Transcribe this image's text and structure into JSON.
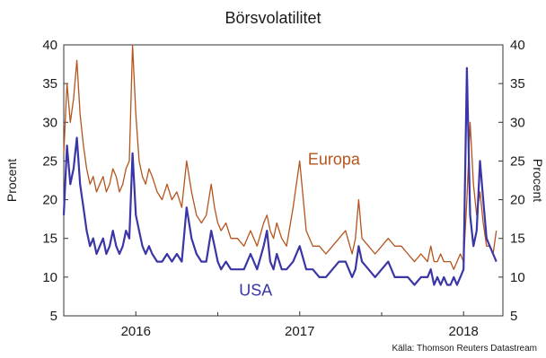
{
  "chart_data": {
    "type": "line",
    "title": "Börsvolatilitet",
    "ylabel_left": "Procent",
    "ylabel_right": "Procent",
    "source": "Källa: Thomson Reuters Datastream",
    "ylim": [
      5,
      40
    ],
    "yticks": [
      "5",
      "10",
      "15",
      "20",
      "25",
      "30",
      "35",
      "40"
    ],
    "xlim": [
      2015.56,
      2018.24
    ],
    "xticks": [
      {
        "label": "2016",
        "x": 2016.0
      },
      {
        "label": "2017",
        "x": 2017.0
      },
      {
        "label": "2018",
        "x": 2018.0
      }
    ],
    "grid": false,
    "series": [
      {
        "name": "Europa",
        "color": "#b5541c",
        "label_x": 2017.05,
        "label_y": 24.5,
        "x": [
          2015.56,
          2015.58,
          2015.6,
          2015.62,
          2015.64,
          2015.66,
          2015.68,
          2015.7,
          2015.72,
          2015.74,
          2015.76,
          2015.78,
          2015.8,
          2015.82,
          2015.84,
          2015.86,
          2015.88,
          2015.9,
          2015.92,
          2015.94,
          2015.96,
          2015.98,
          2016.0,
          2016.02,
          2016.04,
          2016.06,
          2016.08,
          2016.1,
          2016.13,
          2016.16,
          2016.19,
          2016.22,
          2016.25,
          2016.28,
          2016.31,
          2016.34,
          2016.37,
          2016.4,
          2016.43,
          2016.46,
          2016.48,
          2016.5,
          2016.52,
          2016.55,
          2016.58,
          2016.62,
          2016.66,
          2016.7,
          2016.74,
          2016.78,
          2016.8,
          2016.82,
          2016.84,
          2016.86,
          2016.89,
          2016.92,
          2016.96,
          2017.0,
          2017.04,
          2017.08,
          2017.12,
          2017.16,
          2017.2,
          2017.24,
          2017.28,
          2017.32,
          2017.34,
          2017.36,
          2017.38,
          2017.42,
          2017.46,
          2017.5,
          2017.54,
          2017.58,
          2017.62,
          2017.66,
          2017.7,
          2017.74,
          2017.78,
          2017.8,
          2017.82,
          2017.84,
          2017.86,
          2017.88,
          2017.9,
          2017.92,
          2017.94,
          2017.96,
          2017.98,
          2018.0,
          2018.02,
          2018.04,
          2018.06,
          2018.08,
          2018.1,
          2018.12,
          2018.14,
          2018.16,
          2018.18,
          2018.2
        ],
        "values": [
          26,
          35,
          30,
          33,
          38,
          31,
          27,
          24,
          22,
          23,
          21,
          22,
          23,
          21,
          22,
          24,
          23,
          21,
          22,
          24,
          25,
          40,
          31,
          25,
          23,
          22,
          24,
          23,
          21,
          20,
          22,
          20,
          21,
          19,
          25,
          21,
          18,
          17,
          18,
          22,
          19,
          17,
          16,
          17,
          15,
          15,
          14,
          16,
          14,
          17,
          18,
          16,
          15,
          17,
          15,
          14,
          19,
          25,
          16,
          14,
          14,
          13,
          14,
          15,
          16,
          13,
          15,
          20,
          15,
          14,
          13,
          14,
          15,
          14,
          14,
          13,
          12,
          13,
          12,
          14,
          12,
          12,
          13,
          12,
          12,
          12,
          11,
          12,
          13,
          12,
          20,
          30,
          22,
          18,
          21,
          17,
          14,
          14,
          13,
          16
        ]
      },
      {
        "name": "USA",
        "color": "#3a36a6",
        "label_x": 2016.63,
        "label_y": 7.6,
        "x": [
          2015.56,
          2015.58,
          2015.6,
          2015.62,
          2015.64,
          2015.66,
          2015.68,
          2015.7,
          2015.72,
          2015.74,
          2015.76,
          2015.78,
          2015.8,
          2015.82,
          2015.84,
          2015.86,
          2015.88,
          2015.9,
          2015.92,
          2015.94,
          2015.96,
          2015.98,
          2016.0,
          2016.02,
          2016.04,
          2016.06,
          2016.08,
          2016.1,
          2016.13,
          2016.16,
          2016.19,
          2016.22,
          2016.25,
          2016.28,
          2016.31,
          2016.34,
          2016.37,
          2016.4,
          2016.43,
          2016.46,
          2016.48,
          2016.5,
          2016.52,
          2016.55,
          2016.58,
          2016.62,
          2016.66,
          2016.7,
          2016.74,
          2016.78,
          2016.8,
          2016.82,
          2016.84,
          2016.86,
          2016.89,
          2016.92,
          2016.96,
          2017.0,
          2017.04,
          2017.08,
          2017.12,
          2017.16,
          2017.2,
          2017.24,
          2017.28,
          2017.32,
          2017.34,
          2017.36,
          2017.38,
          2017.42,
          2017.46,
          2017.5,
          2017.54,
          2017.58,
          2017.62,
          2017.66,
          2017.7,
          2017.74,
          2017.78,
          2017.8,
          2017.82,
          2017.84,
          2017.86,
          2017.88,
          2017.9,
          2017.92,
          2017.94,
          2017.96,
          2017.98,
          2018.0,
          2018.02,
          2018.04,
          2018.06,
          2018.08,
          2018.1,
          2018.12,
          2018.14,
          2018.16,
          2018.18,
          2018.2
        ],
        "values": [
          18,
          27,
          22,
          24,
          28,
          22,
          19,
          16,
          14,
          15,
          13,
          14,
          15,
          13,
          14,
          16,
          14,
          13,
          14,
          16,
          15,
          26,
          18,
          16,
          14,
          13,
          14,
          13,
          12,
          12,
          13,
          12,
          13,
          12,
          19,
          15,
          13,
          12,
          12,
          16,
          14,
          12,
          11,
          12,
          11,
          11,
          11,
          13,
          11,
          14,
          16,
          12,
          11,
          13,
          11,
          11,
          12,
          14,
          11,
          11,
          10,
          10,
          11,
          12,
          12,
          10,
          11,
          14,
          12,
          11,
          10,
          11,
          12,
          10,
          10,
          10,
          9,
          10,
          10,
          11,
          9,
          10,
          9,
          10,
          9,
          9,
          10,
          9,
          10,
          11,
          37,
          18,
          14,
          16,
          25,
          20,
          15,
          14,
          13,
          12
        ]
      }
    ]
  }
}
